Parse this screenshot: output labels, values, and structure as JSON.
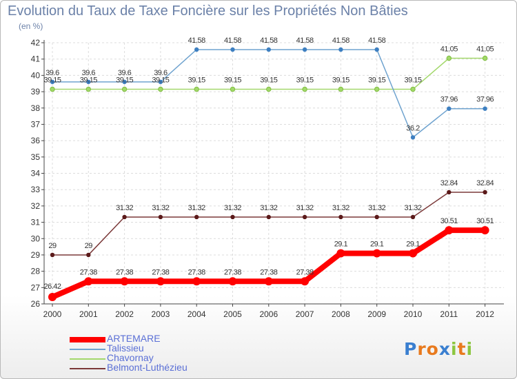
{
  "chart_data": {
    "type": "line",
    "title": "Evolution du Taux de Taxe Foncière sur les Propriétés Non Bâties",
    "subtitle": "(en %)",
    "xlabel": "",
    "ylabel": "",
    "categories": [
      "2000",
      "2001",
      "2002",
      "2003",
      "2004",
      "2005",
      "2006",
      "2007",
      "2008",
      "2009",
      "2010",
      "2011",
      "2012"
    ],
    "ylim": [
      26,
      42
    ],
    "yticks": [
      26,
      27,
      28,
      29,
      30,
      31,
      32,
      33,
      34,
      35,
      36,
      37,
      38,
      39,
      40,
      41,
      42
    ],
    "legend_position": "bottom-left",
    "series": [
      {
        "name": "ARTEMARE",
        "color": "#ff0000",
        "values": [
          26.42,
          27.38,
          27.38,
          27.38,
          27.38,
          27.38,
          27.38,
          27.38,
          29.1,
          29.1,
          29.1,
          30.51,
          30.51
        ],
        "labels": [
          "26.42",
          "27.38",
          "27.38",
          "27.38",
          "27.38",
          "27.38",
          "27.38",
          "27.38",
          "29.1",
          "29.1",
          "29.1",
          "30.51",
          "30.51"
        ]
      },
      {
        "name": "Talissieu",
        "color": "#6fa3cf",
        "values": [
          39.6,
          39.6,
          39.6,
          39.6,
          41.58,
          41.58,
          41.58,
          41.58,
          41.58,
          41.58,
          36.2,
          37.96,
          37.96
        ],
        "labels": [
          "39.6",
          "39.6",
          "39.6",
          "39.6",
          "41.58",
          "41.58",
          "41.58",
          "41.58",
          "41.58",
          "41.58",
          "36.2",
          "37.96",
          "37.96"
        ]
      },
      {
        "name": "Chavornay",
        "color": "#a3d86b",
        "values": [
          39.15,
          39.15,
          39.15,
          39.15,
          39.15,
          39.15,
          39.15,
          39.15,
          39.15,
          39.15,
          39.15,
          41.05,
          41.05
        ],
        "labels": [
          "39.15",
          "39.15",
          "39.15",
          "39.15",
          "39.15",
          "39.15",
          "39.15",
          "39.15",
          "39.15",
          "39.15",
          "39.15",
          "41.05",
          "41.05"
        ]
      },
      {
        "name": "Belmont-Luthézieu",
        "color": "#7a3838",
        "values": [
          29,
          29,
          31.32,
          31.32,
          31.32,
          31.32,
          31.32,
          31.32,
          31.32,
          31.32,
          31.32,
          32.84,
          32.84
        ],
        "labels": [
          "29",
          "29",
          "31.32",
          "31.32",
          "31.32",
          "31.32",
          "31.32",
          "31.32",
          "31.32",
          "31.32",
          "31.32",
          "32.84",
          "32.84"
        ]
      }
    ]
  },
  "brand": {
    "letters": [
      "P",
      "r",
      "o",
      "x",
      "i",
      "t",
      "i"
    ],
    "colors": [
      "#3a7fd0",
      "#e87a1e",
      "#e87a1e",
      "#3a7fd0",
      "#8cc63f",
      "#e87a1e",
      "#8cc63f"
    ]
  }
}
